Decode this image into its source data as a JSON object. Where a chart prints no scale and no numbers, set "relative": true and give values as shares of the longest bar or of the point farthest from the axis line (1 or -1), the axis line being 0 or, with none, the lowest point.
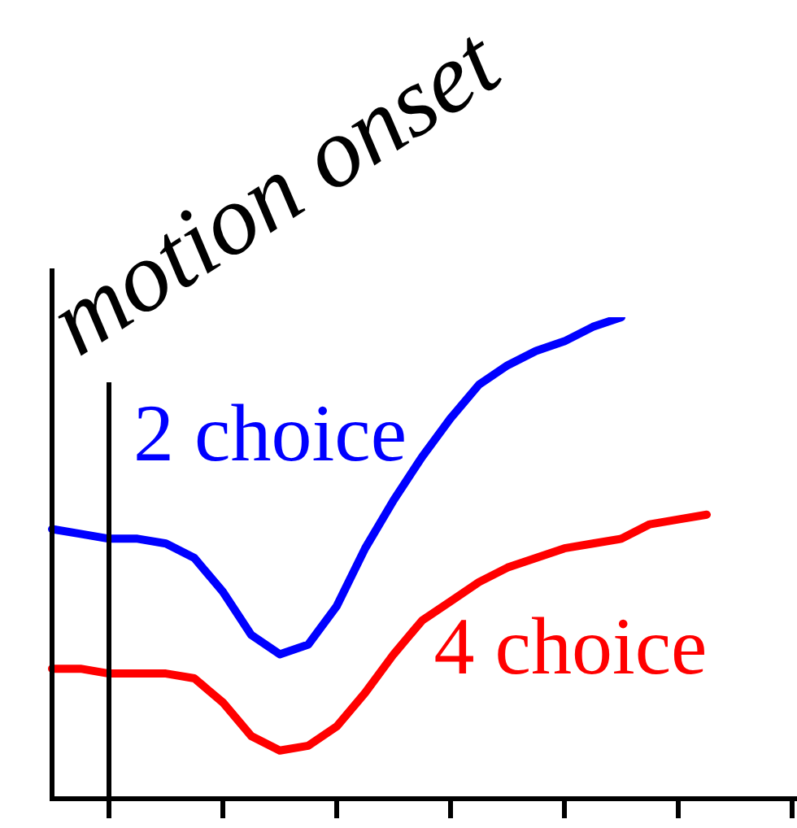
{
  "chart_data": {
    "type": "line",
    "relative": true,
    "marker": "none",
    "categories": [
      null,
      null,
      null,
      null,
      null,
      null,
      null,
      null,
      null,
      null,
      null,
      null,
      null,
      null,
      null,
      null,
      null,
      null,
      null,
      null,
      null,
      null,
      null,
      null,
      null,
      null,
      null
    ],
    "series": [
      {
        "name": "2 choice",
        "color": "#0000ff",
        "values": [
          0.56,
          0.55,
          0.54,
          0.54,
          0.53,
          0.5,
          0.43,
          0.34,
          0.3,
          0.32,
          0.4,
          0.52,
          0.62,
          0.71,
          0.79,
          0.86,
          0.9,
          0.93,
          0.95,
          0.98,
          1,
          null,
          null,
          null,
          null,
          null,
          null
        ]
      },
      {
        "name": "4 choice",
        "color": "#ff0000",
        "values": [
          0.27,
          0.27,
          0.26,
          0.26,
          0.26,
          0.25,
          0.2,
          0.13,
          0.1,
          0.11,
          0.15,
          0.22,
          0.3,
          0.37,
          0.41,
          0.45,
          0.48,
          0.5,
          0.52,
          0.53,
          0.54,
          0.57,
          0.58,
          0.59,
          null,
          null,
          null
        ]
      }
    ],
    "annotations": [
      "motion onset"
    ]
  }
}
